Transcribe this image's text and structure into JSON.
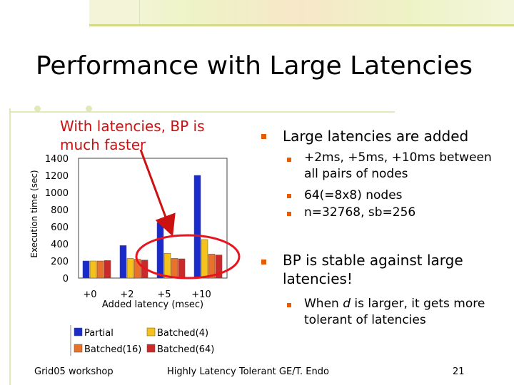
{
  "slide": {
    "title": "Performance with Large Latencies",
    "annotation": "With latencies, BP is much faster",
    "bullets": [
      {
        "text": "Large latencies are added",
        "sub": [
          "+2ms, +5ms, +10ms between all pairs of nodes",
          "64(=8x8) nodes",
          "n=32768, sb=256"
        ]
      },
      {
        "text": "BP is stable against large latencies!",
        "sub_parts": [
          "When ",
          "d",
          " is larger, it gets more tolerant of latencies"
        ]
      }
    ],
    "footer": {
      "left": "Grid05 workshop",
      "center": "Highly Latency Tolerant GE/T. Endo",
      "right": "21"
    }
  },
  "colors": {
    "accent": "#cc1111",
    "bullet": "#e65a00",
    "rule": "#e2e8b8"
  },
  "chart_data": {
    "type": "bar",
    "categories": [
      "+0",
      "+2",
      "+5",
      "+10"
    ],
    "series": [
      {
        "name": "Partial",
        "color": "#1a2bcc",
        "values": [
          200,
          380,
          650,
          1200
        ]
      },
      {
        "name": "Batched(4)",
        "color": "#f5c21b",
        "values": [
          200,
          230,
          290,
          450
        ]
      },
      {
        "name": "Batched(16)",
        "color": "#e8722a",
        "values": [
          200,
          220,
          230,
          280
        ]
      },
      {
        "name": "Batched(64)",
        "color": "#cc2a2a",
        "values": [
          205,
          210,
          225,
          270
        ]
      }
    ],
    "yticks": [
      "1400",
      "1200",
      "1000",
      "800",
      "600",
      "400",
      "200",
      "0"
    ],
    "ylim": [
      0,
      1400
    ],
    "xlabel": "Added latency (msec)",
    "ylabel": "Execution time (sec)",
    "grid": false,
    "legend_position": "bottom"
  }
}
